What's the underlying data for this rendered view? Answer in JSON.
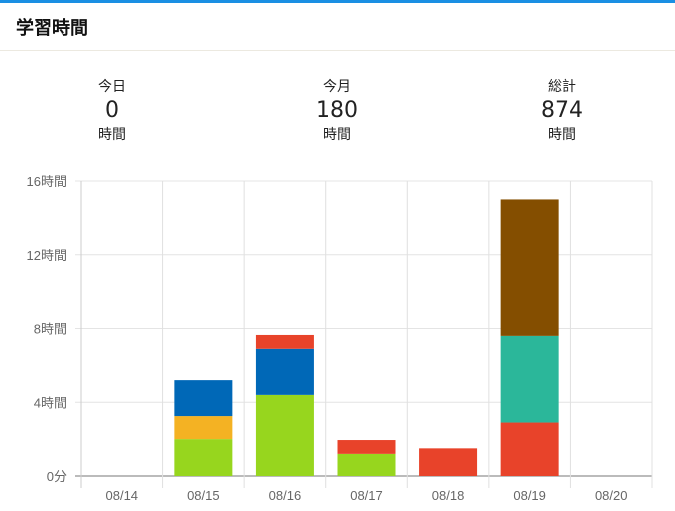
{
  "header": {
    "title": "学習時間"
  },
  "stats": [
    {
      "label": "今日",
      "value": "0",
      "unit": "時間"
    },
    {
      "label": "今月",
      "value": "180",
      "unit": "時間"
    },
    {
      "label": "総計",
      "value": "874",
      "unit": "時間"
    }
  ],
  "colors": {
    "accent": "#1a8fe3"
  },
  "chart_data": {
    "type": "bar",
    "stacked": true,
    "categories": [
      "08/14",
      "08/15",
      "08/16",
      "08/17",
      "08/18",
      "08/19",
      "08/20"
    ],
    "yticks": [
      {
        "value": 0,
        "label": "0分"
      },
      {
        "value": 4,
        "label": "4時間"
      },
      {
        "value": 8,
        "label": "8時間"
      },
      {
        "value": 12,
        "label": "12時間"
      },
      {
        "value": 16,
        "label": "16時間"
      }
    ],
    "ylim": [
      0,
      16
    ],
    "ylabel": "hours",
    "grid": true,
    "series": [
      {
        "color": "#97d61e",
        "values": [
          0,
          2,
          4.4,
          1.2,
          0,
          0,
          0
        ]
      },
      {
        "color": "#f4b223",
        "values": [
          0,
          1.25,
          0,
          0,
          0,
          0,
          0
        ]
      },
      {
        "color": "#0068b7",
        "values": [
          0,
          1.95,
          2.5,
          0,
          0,
          0,
          0
        ]
      },
      {
        "color": "#e8432a",
        "values": [
          0,
          0,
          0.75,
          0.75,
          1.5,
          2.9,
          0
        ]
      },
      {
        "color": "#2bb79a",
        "values": [
          0,
          0,
          0,
          0,
          0,
          4.7,
          0
        ]
      },
      {
        "color": "#844e00",
        "values": [
          0,
          0,
          0,
          0,
          0,
          7.4,
          0
        ]
      }
    ]
  }
}
